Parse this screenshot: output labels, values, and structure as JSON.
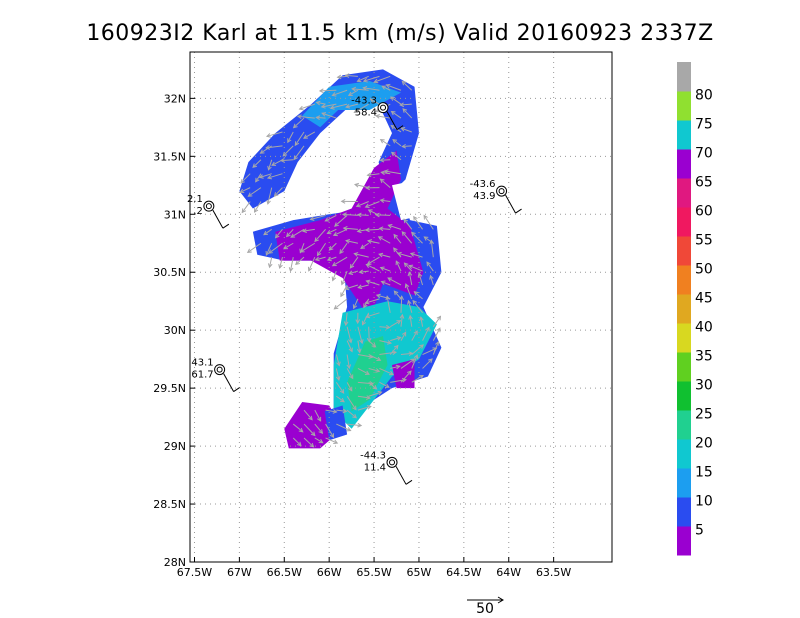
{
  "title": "160923I2 Karl at 11.5 km (m/s) Valid 20160923 2337Z",
  "chart_data": {
    "type": "heatmap",
    "title": "160923I2 Karl at 11.5 km (m/s) Valid 20160923 2337Z",
    "xlabel": "",
    "ylabel": "",
    "xlim": [
      -67.55,
      -62.85
    ],
    "ylim": [
      28.0,
      32.4
    ],
    "x_ticks": [
      -67.5,
      -67,
      -66.5,
      -66,
      -65.5,
      -65,
      -64.5,
      -64,
      -63.5
    ],
    "x_tick_labels": [
      "67.5W",
      "67W",
      "66.5W",
      "66W",
      "65.5W",
      "65W",
      "64.5W",
      "64W",
      "63.5W"
    ],
    "y_ticks": [
      28,
      28.5,
      29,
      29.5,
      30,
      30.5,
      31,
      31.5,
      32
    ],
    "y_tick_labels": [
      "28N",
      "28.5N",
      "29N",
      "29.5N",
      "30N",
      "30.5N",
      "31N",
      "31.5N",
      "32N"
    ],
    "grid": true,
    "colorbar": {
      "labels": [
        "5",
        "10",
        "15",
        "20",
        "25",
        "30",
        "35",
        "40",
        "45",
        "50",
        "55",
        "60",
        "65",
        "70",
        "75",
        "80"
      ],
      "colors": [
        "#9a00d0",
        "#2a4cf0",
        "#1c9ef0",
        "#10c8d0",
        "#20d090",
        "#10c030",
        "#60d020",
        "#d8d820",
        "#e0a820",
        "#f08020",
        "#f04838",
        "#f01860",
        "#e01880",
        "#9a00d0",
        "#10c8d0",
        "#90e030",
        "#a8a8a8"
      ]
    },
    "wind_vector_reference": {
      "label": "50"
    },
    "stations": [
      {
        "lon": -65.4,
        "lat": 31.92,
        "temp": "-43.3",
        "speed": "58.4"
      },
      {
        "lon": -64.08,
        "lat": 31.2,
        "temp": "-43.6",
        "speed": "43.9"
      },
      {
        "lon": -67.34,
        "lat": 31.07,
        "temp": "2.1",
        "speed": ".2"
      },
      {
        "lon": -67.22,
        "lat": 29.66,
        "temp": "43.1",
        "speed": "61.7"
      },
      {
        "lon": -65.3,
        "lat": 28.86,
        "temp": "-44.3",
        "speed": "11.4"
      }
    ],
    "regions": [
      {
        "name": "north-arc",
        "color": "#2a4cf0",
        "points": [
          [
            -66.9,
            31.45
          ],
          [
            -66.6,
            31.7
          ],
          [
            -66.2,
            31.95
          ],
          [
            -65.85,
            32.2
          ],
          [
            -65.4,
            32.25
          ],
          [
            -65.05,
            32.1
          ],
          [
            -65.0,
            31.7
          ],
          [
            -65.15,
            31.3
          ],
          [
            -65.35,
            31.15
          ],
          [
            -65.45,
            31.45
          ],
          [
            -65.3,
            31.7
          ],
          [
            -65.45,
            31.95
          ],
          [
            -65.75,
            31.95
          ],
          [
            -66.1,
            31.7
          ],
          [
            -66.35,
            31.45
          ],
          [
            -66.5,
            31.2
          ],
          [
            -66.85,
            31.05
          ],
          [
            -67.0,
            31.2
          ]
        ]
      },
      {
        "name": "west-band",
        "color": "#2a4cf0",
        "points": [
          [
            -66.85,
            30.85
          ],
          [
            -66.4,
            30.95
          ],
          [
            -66.0,
            31.0
          ],
          [
            -65.55,
            31.05
          ],
          [
            -65.6,
            30.7
          ],
          [
            -66.0,
            30.6
          ],
          [
            -66.5,
            30.6
          ],
          [
            -66.8,
            30.65
          ]
        ]
      },
      {
        "name": "core-blue",
        "color": "#2a4cf0",
        "points": [
          [
            -65.7,
            31.1
          ],
          [
            -65.2,
            31.2
          ],
          [
            -65.1,
            30.95
          ],
          [
            -64.8,
            30.9
          ],
          [
            -64.75,
            30.5
          ],
          [
            -64.95,
            30.2
          ],
          [
            -64.75,
            29.85
          ],
          [
            -64.9,
            29.6
          ],
          [
            -65.3,
            29.5
          ],
          [
            -65.6,
            29.35
          ],
          [
            -65.8,
            29.2
          ],
          [
            -65.95,
            29.3
          ],
          [
            -65.95,
            29.8
          ],
          [
            -65.8,
            30.2
          ],
          [
            -65.85,
            30.7
          ]
        ]
      },
      {
        "name": "north-arc-lightblue",
        "color": "#1c9ef0",
        "points": [
          [
            -66.3,
            31.85
          ],
          [
            -66.0,
            32.1
          ],
          [
            -65.55,
            32.15
          ],
          [
            -65.2,
            32.05
          ],
          [
            -65.55,
            31.9
          ],
          [
            -65.9,
            31.9
          ],
          [
            -66.1,
            31.75
          ]
        ]
      },
      {
        "name": "purple-center",
        "color": "#9a00d0",
        "points": [
          [
            -66.6,
            30.85
          ],
          [
            -66.1,
            30.95
          ],
          [
            -65.75,
            31.05
          ],
          [
            -65.5,
            31.4
          ],
          [
            -65.25,
            31.55
          ],
          [
            -65.2,
            31.3
          ],
          [
            -65.35,
            31.05
          ],
          [
            -65.1,
            30.9
          ],
          [
            -64.95,
            30.5
          ],
          [
            -65.05,
            30.3
          ],
          [
            -65.4,
            30.4
          ],
          [
            -65.55,
            30.1
          ],
          [
            -65.85,
            30.45
          ],
          [
            -66.2,
            30.6
          ],
          [
            -66.55,
            30.6
          ]
        ]
      },
      {
        "name": "cyan-core",
        "color": "#10c8d0",
        "points": [
          [
            -65.85,
            30.15
          ],
          [
            -65.6,
            30.2
          ],
          [
            -65.35,
            30.25
          ],
          [
            -65.0,
            30.2
          ],
          [
            -64.8,
            30.05
          ],
          [
            -65.0,
            29.75
          ],
          [
            -65.3,
            29.6
          ],
          [
            -65.55,
            29.35
          ],
          [
            -65.75,
            29.15
          ],
          [
            -65.95,
            29.3
          ],
          [
            -65.95,
            29.7
          ]
        ]
      },
      {
        "name": "green-core",
        "color": "#20d090",
        "points": [
          [
            -65.6,
            29.9
          ],
          [
            -65.4,
            29.95
          ],
          [
            -65.35,
            29.7
          ],
          [
            -65.55,
            29.4
          ],
          [
            -65.75,
            29.3
          ],
          [
            -65.8,
            29.55
          ]
        ]
      },
      {
        "name": "southwest-blob",
        "color": "#9a00d0",
        "points": [
          [
            -66.5,
            29.15
          ],
          [
            -66.3,
            29.38
          ],
          [
            -66.0,
            29.35
          ],
          [
            -65.85,
            29.15
          ],
          [
            -66.1,
            28.98
          ],
          [
            -66.45,
            28.98
          ]
        ]
      },
      {
        "name": "southwest-blob-blue",
        "color": "#2a4cf0",
        "points": [
          [
            -66.05,
            29.3
          ],
          [
            -65.85,
            29.35
          ],
          [
            -65.8,
            29.1
          ],
          [
            -66.0,
            29.05
          ]
        ]
      },
      {
        "name": "purple-east",
        "color": "#9a00d0",
        "points": [
          [
            -65.3,
            29.7
          ],
          [
            -65.05,
            29.75
          ],
          [
            -65.05,
            29.5
          ],
          [
            -65.25,
            29.5
          ]
        ]
      }
    ],
    "holes": [
      {
        "name": "hole-1",
        "points": [
          [
            -66.05,
            31.45
          ],
          [
            -65.85,
            31.75
          ],
          [
            -65.55,
            31.85
          ],
          [
            -65.45,
            31.6
          ],
          [
            -65.6,
            31.35
          ],
          [
            -65.9,
            31.15
          ]
        ]
      },
      {
        "name": "hole-2",
        "points": [
          [
            -65.3,
            31.25
          ],
          [
            -65.0,
            31.3
          ],
          [
            -64.9,
            31.0
          ],
          [
            -65.2,
            30.95
          ]
        ]
      }
    ]
  }
}
